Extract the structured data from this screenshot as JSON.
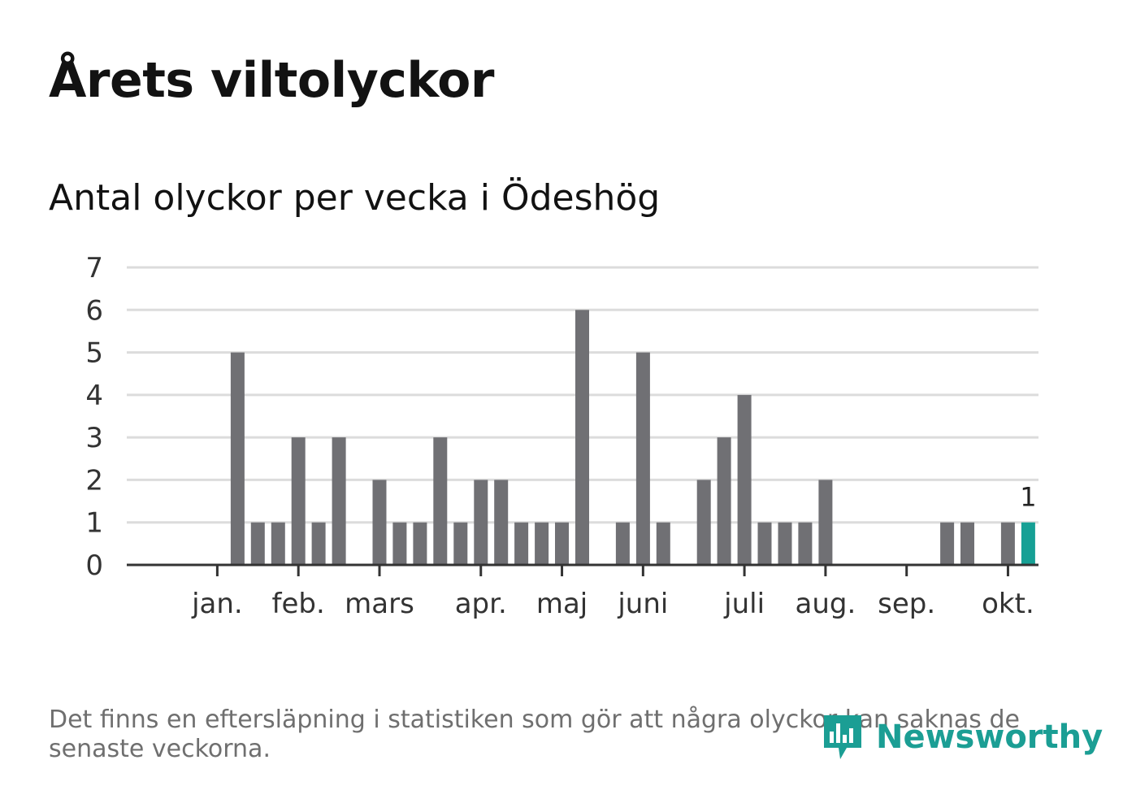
{
  "header": {
    "title": "Årets viltolyckor",
    "subtitle": "Antal olyckor per vecka i Ödeshög"
  },
  "colors": {
    "bar": "#707074",
    "highlight": "#16a095",
    "grid": "#dcdcdc",
    "axis": "#333333",
    "logo": "#1b9e94"
  },
  "chart_data": {
    "type": "bar",
    "title": "Antal olyckor per vecka i Ödeshög",
    "xlabel": "",
    "ylabel": "",
    "ylim": [
      0,
      7
    ],
    "y_ticks": [
      0,
      1,
      2,
      3,
      4,
      5,
      6,
      7
    ],
    "grid": true,
    "weeks": [
      1,
      2,
      3,
      4,
      5,
      6,
      7,
      8,
      9,
      10,
      11,
      12,
      13,
      14,
      15,
      16,
      17,
      18,
      19,
      20,
      21,
      22,
      23,
      24,
      25,
      26,
      27,
      28,
      29,
      30,
      31,
      32,
      33,
      34,
      35,
      36,
      37,
      38,
      39,
      40,
      41,
      42,
      43,
      44
    ],
    "values": [
      0,
      0,
      0,
      5,
      1,
      1,
      3,
      1,
      3,
      0,
      2,
      1,
      1,
      3,
      1,
      2,
      2,
      1,
      1,
      1,
      6,
      0,
      1,
      5,
      1,
      0,
      2,
      3,
      4,
      1,
      1,
      1,
      2,
      0,
      0,
      0,
      0,
      0,
      1,
      1,
      0,
      1,
      1,
      0
    ],
    "highlight_index": 42,
    "highlight_label": "1",
    "month_ticks": [
      {
        "label": "jan.",
        "week": 3
      },
      {
        "label": "feb.",
        "week": 7
      },
      {
        "label": "mars",
        "week": 11
      },
      {
        "label": "apr.",
        "week": 16
      },
      {
        "label": "maj",
        "week": 20
      },
      {
        "label": "juni",
        "week": 24
      },
      {
        "label": "juli",
        "week": 29
      },
      {
        "label": "aug.",
        "week": 33
      },
      {
        "label": "sep.",
        "week": 37
      },
      {
        "label": "okt.",
        "week": 42
      }
    ]
  },
  "footer": {
    "note": "Det finns en eftersläpning i statistiken som gör att några olyckor kan saknas de senaste veckorna.",
    "brand": "Newsworthy",
    "brand_icon": "newsworthy-chart-icon"
  }
}
